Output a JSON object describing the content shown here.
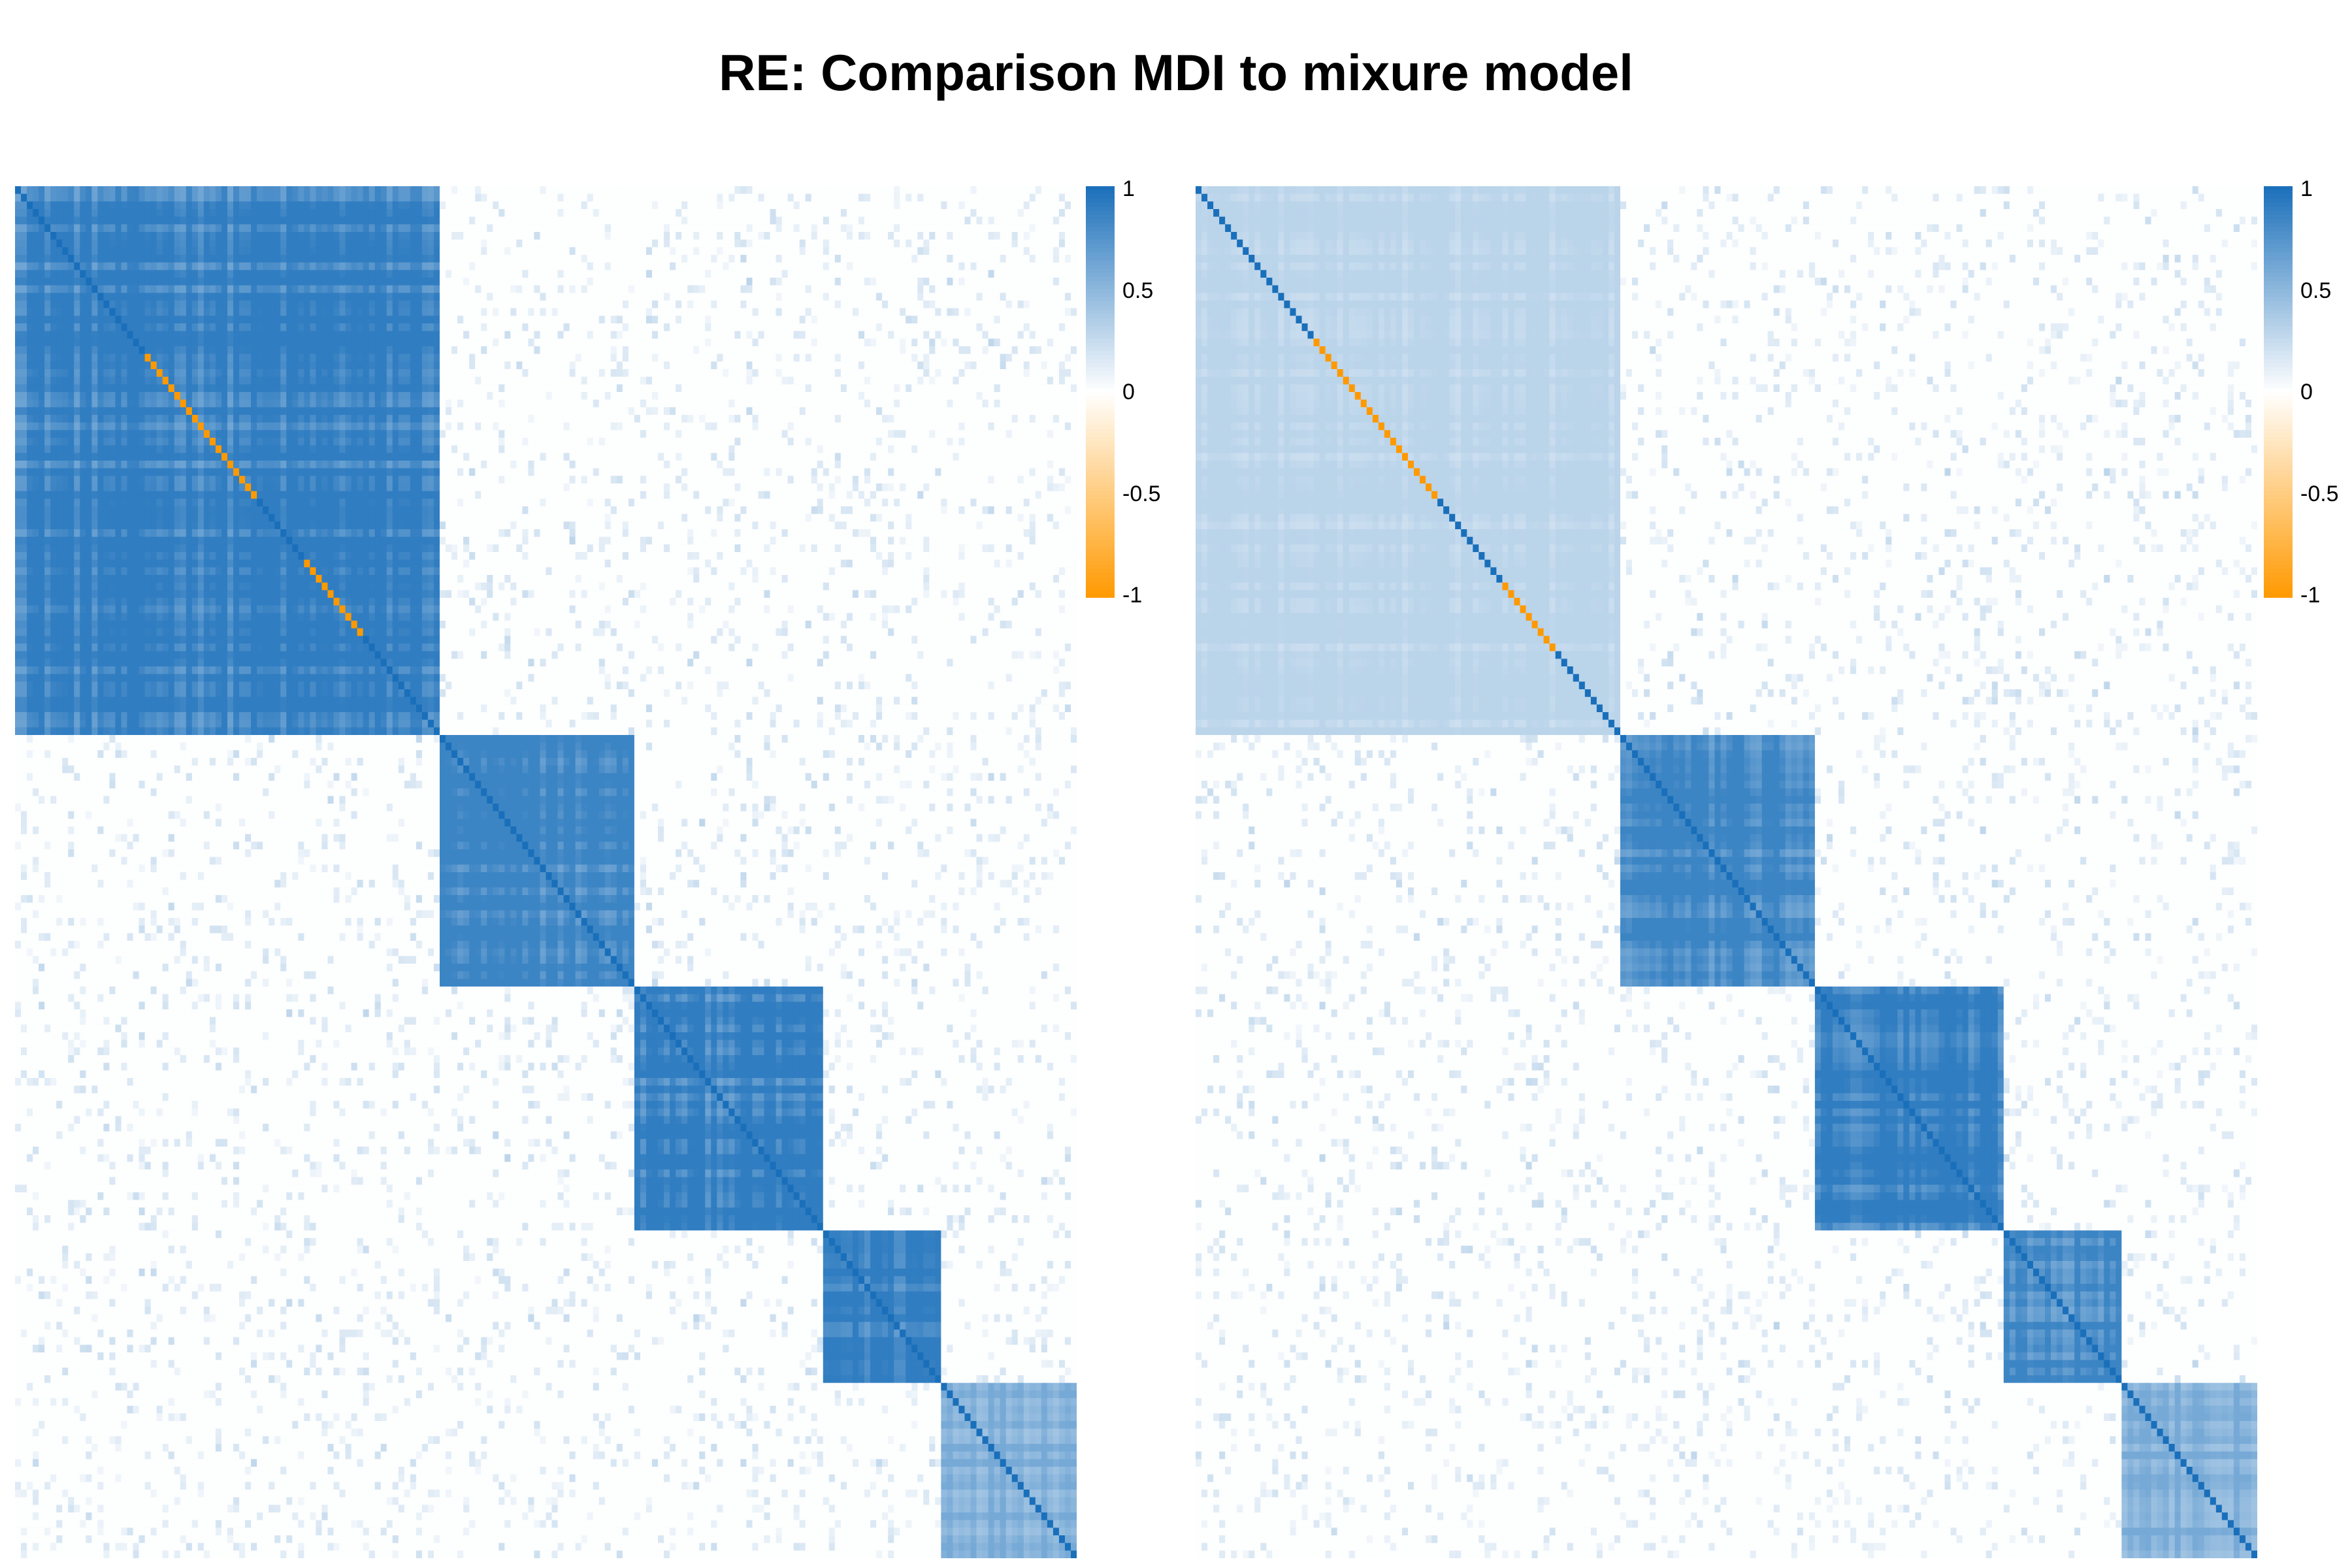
{
  "title": "RE: Comparison MDI to mixure model",
  "chart_data": [
    {
      "type": "heatmap",
      "title": "",
      "n": 180,
      "clusters": [
        {
          "start": 0,
          "end": 71
        },
        {
          "start": 72,
          "end": 104
        },
        {
          "start": 105,
          "end": 136
        },
        {
          "start": 137,
          "end": 156
        },
        {
          "start": 157,
          "end": 179
        }
      ],
      "cluster_strength": [
        0.9,
        0.85,
        0.9,
        0.9,
        0.6
      ],
      "negative_diagonal_ranges": [
        [
          22,
          40
        ],
        [
          49,
          58
        ]
      ],
      "colorscale": {
        "min": -1,
        "mid": 0,
        "max": 1,
        "low": "#ff9900",
        "mid_color": "#ffffff",
        "high": "#1a6fba"
      },
      "colorbar_ticks": [
        "1",
        "0.5",
        "0",
        "-0.5",
        "-1"
      ],
      "xlabel": "",
      "ylabel": "",
      "legend": "colorbar right"
    },
    {
      "type": "heatmap",
      "title": "",
      "n": 180,
      "clusters": [
        {
          "start": 0,
          "end": 71
        },
        {
          "start": 72,
          "end": 104
        },
        {
          "start": 105,
          "end": 136
        },
        {
          "start": 137,
          "end": 156
        },
        {
          "start": 157,
          "end": 179
        }
      ],
      "cluster_strength": [
        0.3,
        0.85,
        0.9,
        0.85,
        0.6
      ],
      "negative_diagonal_ranges": [
        [
          20,
          40
        ],
        [
          52,
          60
        ]
      ],
      "colorscale": {
        "min": -1,
        "mid": 0,
        "max": 1,
        "low": "#ff9900",
        "mid_color": "#ffffff",
        "high": "#1a6fba"
      },
      "colorbar_ticks": [
        "1",
        "0.5",
        "0",
        "-0.5",
        "-1"
      ],
      "xlabel": "",
      "ylabel": "",
      "legend": "colorbar right"
    }
  ]
}
